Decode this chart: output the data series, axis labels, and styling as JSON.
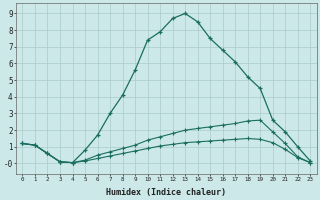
{
  "xlabel": "Humidex (Indice chaleur)",
  "ylabel": "",
  "background_color": "#cce8e8",
  "grid_color": "#aacccc",
  "line_color": "#1a6e60",
  "xlim": [
    -0.5,
    23.5
  ],
  "ylim": [
    -0.6,
    9.6
  ],
  "xticks": [
    0,
    1,
    2,
    3,
    4,
    5,
    6,
    7,
    8,
    9,
    10,
    11,
    12,
    13,
    14,
    15,
    16,
    17,
    18,
    19,
    20,
    21,
    22,
    23
  ],
  "ytick_vals": [
    0,
    1,
    2,
    3,
    4,
    5,
    6,
    7,
    8,
    9
  ],
  "ytick_labels": [
    "-0",
    "1",
    "2",
    "3",
    "4",
    "5",
    "6",
    "7",
    "8",
    "9"
  ],
  "line1_x": [
    0,
    1,
    2,
    3,
    4,
    5,
    6,
    7,
    8,
    9,
    10,
    11,
    12,
    13,
    14,
    15,
    16,
    17,
    18,
    19,
    20,
    21,
    22,
    23
  ],
  "line1_y": [
    1.2,
    1.1,
    0.6,
    0.1,
    0.05,
    0.8,
    1.7,
    3.0,
    4.1,
    5.6,
    7.4,
    7.9,
    8.7,
    9.0,
    8.5,
    7.5,
    6.8,
    6.1,
    5.2,
    4.5,
    2.6,
    1.9,
    1.0,
    0.15
  ],
  "line2_x": [
    0,
    1,
    2,
    3,
    4,
    5,
    6,
    7,
    8,
    9,
    10,
    11,
    12,
    13,
    14,
    15,
    16,
    17,
    18,
    19,
    20,
    21,
    22,
    23
  ],
  "line2_y": [
    1.2,
    1.1,
    0.6,
    0.1,
    0.05,
    0.2,
    0.5,
    0.7,
    0.9,
    1.1,
    1.4,
    1.6,
    1.8,
    2.0,
    2.1,
    2.2,
    2.3,
    2.4,
    2.55,
    2.6,
    1.9,
    1.2,
    0.4,
    0.05
  ],
  "line3_x": [
    0,
    1,
    2,
    3,
    4,
    5,
    6,
    7,
    8,
    9,
    10,
    11,
    12,
    13,
    14,
    15,
    16,
    17,
    18,
    19,
    20,
    21,
    22,
    23
  ],
  "line3_y": [
    1.2,
    1.1,
    0.6,
    0.1,
    0.05,
    0.15,
    0.3,
    0.45,
    0.6,
    0.75,
    0.9,
    1.05,
    1.15,
    1.25,
    1.3,
    1.35,
    1.4,
    1.45,
    1.5,
    1.45,
    1.25,
    0.85,
    0.35,
    0.05
  ]
}
